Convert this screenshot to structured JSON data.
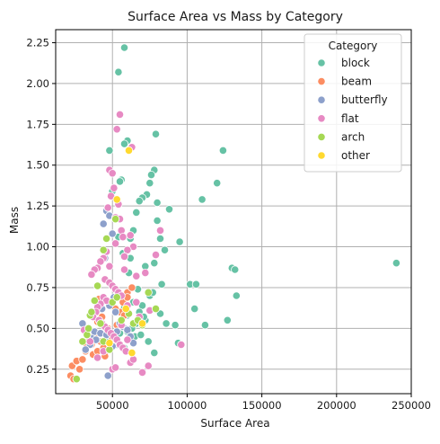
{
  "chart_data": {
    "type": "scatter",
    "title": "Surface Area vs Mass by Category",
    "xlabel": "Surface Area",
    "ylabel": "Mass",
    "xlim": [
      12000,
      250000
    ],
    "ylim": [
      0.1,
      2.33
    ],
    "xticks": [
      50000,
      100000,
      150000,
      200000,
      250000
    ],
    "xtick_labels": [
      "50000",
      "100000",
      "150000",
      "200000",
      "250000"
    ],
    "yticks": [
      0.25,
      0.5,
      0.75,
      1.0,
      1.25,
      1.5,
      1.75,
      2.0,
      2.25
    ],
    "ytick_labels": [
      "0.25",
      "0.50",
      "0.75",
      "1.00",
      "1.25",
      "1.50",
      "1.75",
      "2.00",
      "2.25"
    ],
    "grid": true,
    "legend": {
      "title": "Category",
      "position": "top-right"
    },
    "series": [
      {
        "name": "block",
        "color": "#66c2a5",
        "points": [
          [
            58000,
            2.22
          ],
          [
            54000,
            2.07
          ],
          [
            240000,
            0.9
          ],
          [
            124000,
            1.59
          ],
          [
            120000,
            1.39
          ],
          [
            79000,
            1.69
          ],
          [
            130000,
            0.87
          ],
          [
            132000,
            0.86
          ],
          [
            133000,
            0.7
          ],
          [
            127000,
            0.55
          ],
          [
            112000,
            0.52
          ],
          [
            110000,
            1.29
          ],
          [
            102000,
            0.77
          ],
          [
            106000,
            0.77
          ],
          [
            105000,
            0.62
          ],
          [
            95000,
            1.03
          ],
          [
            88000,
            1.23
          ],
          [
            83000,
            0.77
          ],
          [
            80000,
            1.27
          ],
          [
            78000,
            1.47
          ],
          [
            76000,
            1.44
          ],
          [
            75000,
            1.39
          ],
          [
            73000,
            1.32
          ],
          [
            70000,
            1.3
          ],
          [
            68000,
            1.28
          ],
          [
            66000,
            1.21
          ],
          [
            64000,
            1.1
          ],
          [
            62000,
            1.05
          ],
          [
            60000,
            1.65
          ],
          [
            58000,
            1.63
          ],
          [
            56000,
            1.41
          ],
          [
            55000,
            1.4
          ],
          [
            48000,
            1.59
          ],
          [
            50000,
            1.34
          ],
          [
            80000,
            1.16
          ],
          [
            82000,
            1.05
          ],
          [
            85000,
            0.98
          ],
          [
            78000,
            0.9
          ],
          [
            72000,
            0.88
          ],
          [
            75000,
            0.7
          ],
          [
            77000,
            0.72
          ],
          [
            70000,
            0.64
          ],
          [
            68000,
            0.6
          ],
          [
            72000,
            0.55
          ],
          [
            66000,
            0.53
          ],
          [
            63000,
            0.5
          ],
          [
            65000,
            0.45
          ],
          [
            69000,
            0.46
          ],
          [
            74000,
            0.42
          ],
          [
            78000,
            0.35
          ],
          [
            82000,
            0.59
          ],
          [
            86000,
            0.53
          ],
          [
            92000,
            0.52
          ],
          [
            94000,
            0.41
          ],
          [
            60000,
            0.58
          ],
          [
            58000,
            0.63
          ],
          [
            56000,
            0.52
          ],
          [
            55000,
            0.47
          ],
          [
            52000,
            0.43
          ],
          [
            53000,
            0.4
          ],
          [
            62000,
            0.93
          ],
          [
            61000,
            0.84
          ],
          [
            57000,
            0.96
          ],
          [
            54000,
            1.06
          ],
          [
            67000,
            0.74
          ],
          [
            71000,
            0.57
          ],
          [
            64000,
            0.66
          ],
          [
            60000,
            0.48
          ],
          [
            48000,
            0.44
          ],
          [
            58000,
            0.38
          ]
        ]
      },
      {
        "name": "beam",
        "color": "#fc8d62",
        "points": [
          [
            22000,
            0.21
          ],
          [
            24000,
            0.19
          ],
          [
            23000,
            0.27
          ],
          [
            26000,
            0.3
          ],
          [
            28000,
            0.25
          ],
          [
            30000,
            0.31
          ],
          [
            32000,
            0.36
          ],
          [
            31000,
            0.42
          ],
          [
            34000,
            0.44
          ],
          [
            33000,
            0.4
          ],
          [
            36000,
            0.4
          ],
          [
            37000,
            0.34
          ],
          [
            40000,
            0.36
          ],
          [
            42000,
            0.42
          ],
          [
            44000,
            0.38
          ],
          [
            45000,
            0.33
          ],
          [
            48000,
            0.41
          ],
          [
            50000,
            0.44
          ],
          [
            51000,
            0.47
          ],
          [
            53000,
            0.52
          ],
          [
            55000,
            0.6
          ],
          [
            57000,
            0.66
          ],
          [
            60000,
            0.72
          ],
          [
            63000,
            0.75
          ],
          [
            40000,
            0.54
          ],
          [
            43000,
            0.57
          ],
          [
            38000,
            0.46
          ],
          [
            47000,
            0.5
          ],
          [
            41000,
            0.68
          ],
          [
            52000,
            0.62
          ],
          [
            58000,
            0.58
          ],
          [
            60000,
            0.69
          ]
        ]
      },
      {
        "name": "butterfly",
        "color": "#8da0cb",
        "points": [
          [
            47000,
            0.21
          ],
          [
            30000,
            0.53
          ],
          [
            44000,
            1.14
          ],
          [
            46000,
            1.22
          ],
          [
            48000,
            1.19
          ],
          [
            50000,
            1.08
          ],
          [
            45000,
            0.93
          ],
          [
            49000,
            0.77
          ],
          [
            51000,
            0.69
          ],
          [
            43000,
            0.62
          ],
          [
            41000,
            0.55
          ],
          [
            38000,
            0.48
          ],
          [
            36000,
            0.44
          ],
          [
            35000,
            0.4
          ],
          [
            39000,
            0.43
          ],
          [
            42000,
            0.47
          ],
          [
            46000,
            0.46
          ],
          [
            50000,
            0.39
          ],
          [
            53000,
            0.48
          ],
          [
            55000,
            0.53
          ],
          [
            57000,
            0.51
          ],
          [
            60000,
            0.49
          ],
          [
            52000,
            0.6
          ],
          [
            48000,
            0.64
          ],
          [
            32000,
            0.37
          ],
          [
            62000,
            0.45
          ],
          [
            64000,
            0.41
          ],
          [
            45000,
            0.51
          ]
        ]
      },
      {
        "name": "flat",
        "color": "#e78ac3",
        "points": [
          [
            55000,
            1.81
          ],
          [
            53000,
            1.72
          ],
          [
            48000,
            1.47
          ],
          [
            50000,
            1.45
          ],
          [
            51000,
            1.36
          ],
          [
            49000,
            1.31
          ],
          [
            54000,
            1.26
          ],
          [
            47000,
            1.24
          ],
          [
            52000,
            1.18
          ],
          [
            55000,
            1.17
          ],
          [
            56000,
            1.1
          ],
          [
            57000,
            1.06
          ],
          [
            62000,
            1.07
          ],
          [
            64000,
            1.0
          ],
          [
            60000,
            0.98
          ],
          [
            58000,
            0.94
          ],
          [
            46000,
            0.97
          ],
          [
            44000,
            0.93
          ],
          [
            42000,
            0.91
          ],
          [
            40000,
            0.87
          ],
          [
            38000,
            0.86
          ],
          [
            36000,
            0.83
          ],
          [
            45000,
            0.8
          ],
          [
            48000,
            0.78
          ],
          [
            50000,
            0.76
          ],
          [
            52000,
            0.74
          ],
          [
            54000,
            0.72
          ],
          [
            56000,
            0.7
          ],
          [
            44000,
            0.69
          ],
          [
            46000,
            0.67
          ],
          [
            42000,
            0.65
          ],
          [
            40000,
            0.63
          ],
          [
            39000,
            0.6
          ],
          [
            37000,
            0.57
          ],
          [
            41000,
            0.55
          ],
          [
            43000,
            0.53
          ],
          [
            45000,
            0.51
          ],
          [
            47000,
            0.49
          ],
          [
            49000,
            0.47
          ],
          [
            51000,
            0.45
          ],
          [
            53000,
            0.43
          ],
          [
            55000,
            0.4
          ],
          [
            57000,
            0.38
          ],
          [
            59000,
            0.36
          ],
          [
            50000,
            0.25
          ],
          [
            52000,
            0.26
          ],
          [
            62000,
            0.29
          ],
          [
            70000,
            0.23
          ],
          [
            74000,
            0.27
          ],
          [
            96000,
            0.4
          ],
          [
            72000,
            0.84
          ],
          [
            79000,
            0.95
          ],
          [
            82000,
            1.1
          ],
          [
            66000,
            0.82
          ],
          [
            63000,
            1.61
          ],
          [
            58000,
            0.86
          ],
          [
            60000,
            0.64
          ],
          [
            68000,
            0.57
          ],
          [
            75000,
            0.61
          ],
          [
            66000,
            0.66
          ],
          [
            35000,
            0.42
          ],
          [
            33000,
            0.46
          ],
          [
            31000,
            0.49
          ],
          [
            48000,
            0.88
          ],
          [
            52000,
            1.02
          ],
          [
            56000,
            0.52
          ],
          [
            60000,
            0.43
          ],
          [
            64000,
            0.31
          ],
          [
            44000,
            0.36
          ],
          [
            40000,
            0.32
          ]
        ]
      },
      {
        "name": "arch",
        "color": "#a6d854",
        "points": [
          [
            26000,
            0.19
          ],
          [
            30000,
            0.42
          ],
          [
            33000,
            0.46
          ],
          [
            34000,
            0.5
          ],
          [
            35000,
            0.58
          ],
          [
            36000,
            0.6
          ],
          [
            38000,
            0.67
          ],
          [
            40000,
            0.76
          ],
          [
            44000,
            0.98
          ],
          [
            46000,
            1.05
          ],
          [
            50000,
            0.66
          ],
          [
            53000,
            0.69
          ],
          [
            56000,
            0.55
          ],
          [
            61000,
            0.59
          ],
          [
            64000,
            0.53
          ],
          [
            67000,
            0.55
          ],
          [
            70000,
            0.52
          ],
          [
            74000,
            0.72
          ],
          [
            79000,
            0.62
          ],
          [
            44000,
            0.42
          ],
          [
            48000,
            0.37
          ],
          [
            42000,
            0.53
          ],
          [
            52000,
            1.17
          ]
        ]
      },
      {
        "name": "other",
        "color": "#ffd92f",
        "points": [
          [
            61000,
            1.59
          ],
          [
            53000,
            1.29
          ],
          [
            59000,
            0.62
          ],
          [
            48000,
            0.41
          ],
          [
            70000,
            0.53
          ],
          [
            63000,
            0.35
          ]
        ]
      }
    ]
  }
}
